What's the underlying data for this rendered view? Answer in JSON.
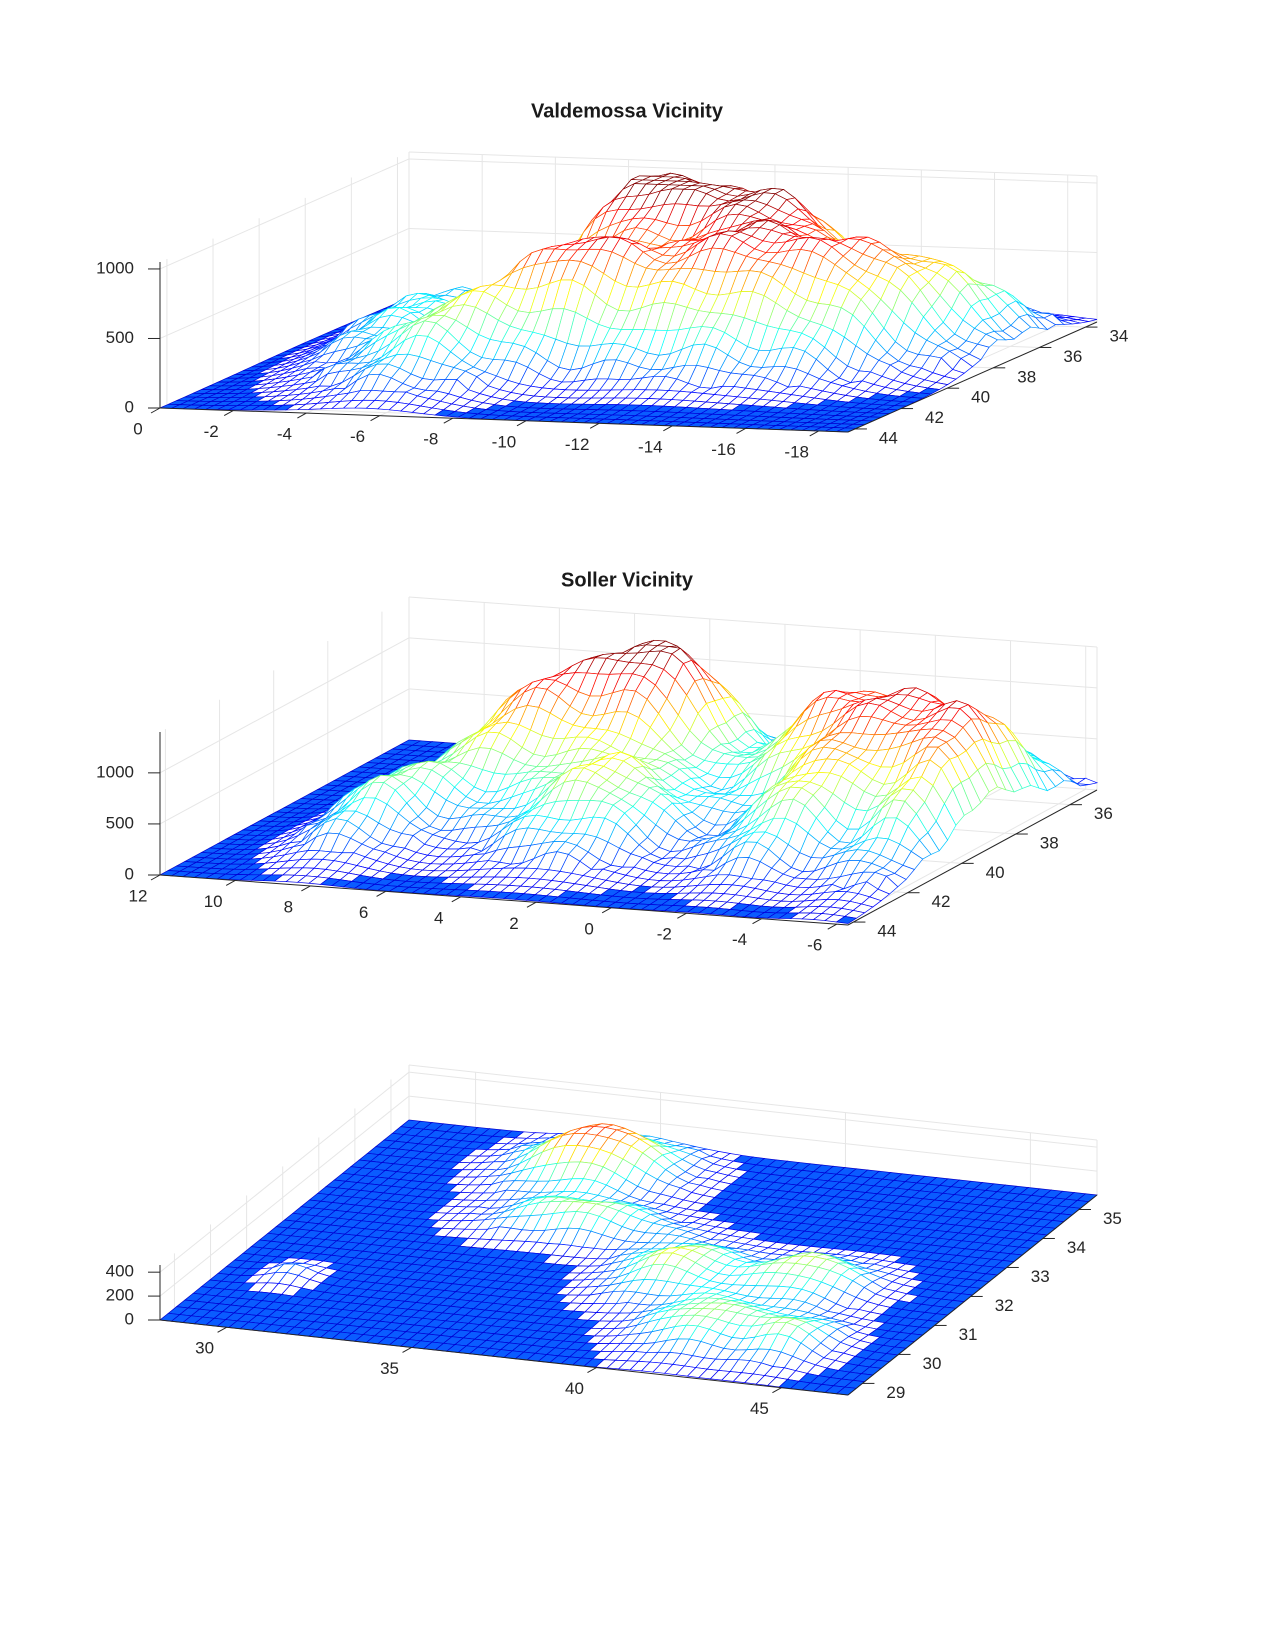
{
  "chart_data": [
    {
      "type": "surface",
      "title": "Valdemossa Vicinity",
      "xlim": [
        0,
        -18.8
      ],
      "xticks": [
        0,
        -2,
        -4,
        -6,
        -8,
        -10,
        -12,
        -14,
        -16,
        -18
      ],
      "ylim": [
        44.3,
        33.5
      ],
      "yticks": [
        34,
        36,
        38,
        40,
        42,
        44
      ],
      "zlim": [
        0,
        1050
      ],
      "zticks": [
        0,
        500,
        1000
      ],
      "grid": true,
      "colormap": "jet"
    },
    {
      "type": "surface",
      "title": "Soller Vicinity",
      "xlim": [
        12,
        -6.3
      ],
      "xticks": [
        12,
        10,
        8,
        6,
        4,
        2,
        0,
        -2,
        -4,
        -6
      ],
      "ylim": [
        44.2,
        35
      ],
      "yticks": [
        36,
        38,
        40,
        42,
        44
      ],
      "zlim": [
        0,
        1400
      ],
      "zticks": [
        0,
        500,
        1000
      ],
      "grid": true,
      "colormap": "jet"
    },
    {
      "type": "surface",
      "xlim": [
        28.2,
        46.8
      ],
      "xticks": [
        30,
        35,
        40,
        45
      ],
      "ylim": [
        28.6,
        35.5
      ],
      "yticks": [
        29,
        30,
        31,
        32,
        33,
        34,
        35
      ],
      "zlim": [
        0,
        460
      ],
      "zticks": [
        0,
        200,
        400
      ],
      "grid": true,
      "colormap": "jet"
    }
  ]
}
